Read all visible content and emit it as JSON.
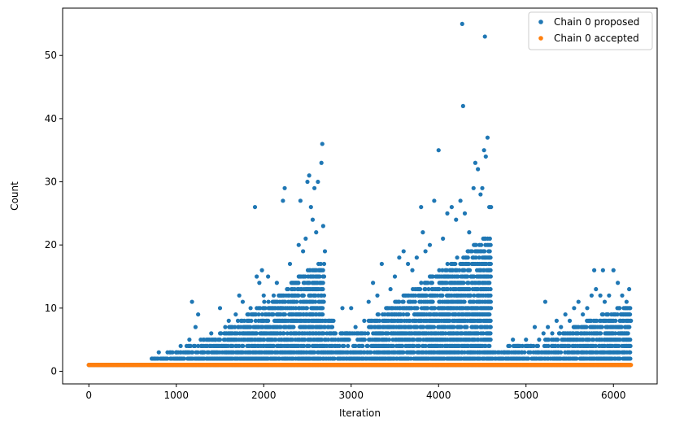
{
  "chart_data": {
    "type": "scatter",
    "title": "",
    "xlabel": "Iteration",
    "ylabel": "Count",
    "xlim": [
      -300,
      6500
    ],
    "ylim": [
      -2,
      57.5
    ],
    "xticks": [
      0,
      1000,
      2000,
      3000,
      4000,
      5000,
      6000
    ],
    "yticks": [
      0,
      10,
      20,
      30,
      40,
      50
    ],
    "grid": false,
    "legend_position": "top-right",
    "series": [
      {
        "name": "Chain 0 proposed",
        "color": "#1f77b4",
        "points": [
          [
            0,
            1
          ],
          [
            200,
            1
          ],
          [
            400,
            1
          ],
          [
            600,
            1
          ],
          [
            720,
            2
          ],
          [
            760,
            2
          ],
          [
            800,
            3
          ],
          [
            850,
            2
          ],
          [
            900,
            3
          ],
          [
            950,
            2
          ],
          [
            1000,
            3
          ],
          [
            1050,
            4
          ],
          [
            1100,
            3
          ],
          [
            1150,
            5
          ],
          [
            1180,
            11
          ],
          [
            1200,
            4
          ],
          [
            1220,
            7
          ],
          [
            1250,
            9
          ],
          [
            1280,
            5
          ],
          [
            1300,
            3
          ],
          [
            1350,
            4
          ],
          [
            1400,
            6
          ],
          [
            1450,
            5
          ],
          [
            1500,
            10
          ],
          [
            1520,
            4
          ],
          [
            1560,
            7
          ],
          [
            1600,
            8
          ],
          [
            1640,
            6
          ],
          [
            1680,
            9
          ],
          [
            1720,
            12
          ],
          [
            1760,
            11
          ],
          [
            1800,
            7
          ],
          [
            1850,
            10
          ],
          [
            1900,
            26
          ],
          [
            1920,
            15
          ],
          [
            1950,
            14
          ],
          [
            1980,
            16
          ],
          [
            2000,
            12
          ],
          [
            2050,
            15
          ],
          [
            2100,
            9
          ],
          [
            2150,
            14
          ],
          [
            2200,
            12
          ],
          [
            2220,
            27
          ],
          [
            2240,
            29
          ],
          [
            2300,
            17
          ],
          [
            2350,
            11
          ],
          [
            2400,
            20
          ],
          [
            2420,
            27
          ],
          [
            2450,
            19
          ],
          [
            2480,
            21
          ],
          [
            2500,
            30
          ],
          [
            2520,
            31
          ],
          [
            2540,
            26
          ],
          [
            2560,
            24
          ],
          [
            2580,
            29
          ],
          [
            2600,
            22
          ],
          [
            2620,
            30
          ],
          [
            2640,
            16
          ],
          [
            2660,
            33
          ],
          [
            2670,
            36
          ],
          [
            2680,
            23
          ],
          [
            2700,
            19
          ],
          [
            2750,
            8
          ],
          [
            2800,
            6
          ],
          [
            2850,
            5
          ],
          [
            2900,
            10
          ],
          [
            2950,
            6
          ],
          [
            3000,
            10
          ],
          [
            3050,
            7
          ],
          [
            3100,
            5
          ],
          [
            3150,
            8
          ],
          [
            3200,
            11
          ],
          [
            3250,
            14
          ],
          [
            3300,
            12
          ],
          [
            3350,
            17
          ],
          [
            3400,
            10
          ],
          [
            3450,
            13
          ],
          [
            3500,
            15
          ],
          [
            3550,
            18
          ],
          [
            3600,
            19
          ],
          [
            3650,
            17
          ],
          [
            3700,
            16
          ],
          [
            3750,
            18
          ],
          [
            3800,
            26
          ],
          [
            3820,
            22
          ],
          [
            3850,
            19
          ],
          [
            3900,
            20
          ],
          [
            3950,
            27
          ],
          [
            4000,
            35
          ],
          [
            4050,
            21
          ],
          [
            4100,
            25
          ],
          [
            4150,
            26
          ],
          [
            4200,
            24
          ],
          [
            4250,
            27
          ],
          [
            4270,
            55
          ],
          [
            4280,
            42
          ],
          [
            4300,
            25
          ],
          [
            4350,
            22
          ],
          [
            4400,
            29
          ],
          [
            4420,
            33
          ],
          [
            4450,
            32
          ],
          [
            4480,
            28
          ],
          [
            4500,
            29
          ],
          [
            4520,
            35
          ],
          [
            4530,
            53
          ],
          [
            4540,
            34
          ],
          [
            4560,
            37
          ],
          [
            4580,
            26
          ],
          [
            4600,
            26
          ],
          [
            4650,
            3
          ],
          [
            4700,
            2
          ],
          [
            4750,
            3
          ],
          [
            4800,
            2
          ],
          [
            4850,
            5
          ],
          [
            4900,
            4
          ],
          [
            4950,
            3
          ],
          [
            5000,
            5
          ],
          [
            5050,
            4
          ],
          [
            5100,
            7
          ],
          [
            5150,
            5
          ],
          [
            5200,
            6
          ],
          [
            5220,
            11
          ],
          [
            5250,
            7
          ],
          [
            5300,
            6
          ],
          [
            5350,
            8
          ],
          [
            5400,
            7
          ],
          [
            5450,
            9
          ],
          [
            5500,
            8
          ],
          [
            5550,
            10
          ],
          [
            5600,
            11
          ],
          [
            5650,
            9
          ],
          [
            5700,
            10
          ],
          [
            5750,
            12
          ],
          [
            5780,
            16
          ],
          [
            5800,
            13
          ],
          [
            5850,
            12
          ],
          [
            5880,
            16
          ],
          [
            5900,
            11
          ],
          [
            5950,
            12
          ],
          [
            6000,
            16
          ],
          [
            6050,
            14
          ],
          [
            6100,
            12
          ],
          [
            6150,
            11
          ],
          [
            6180,
            13
          ],
          [
            6200,
            8
          ]
        ]
      },
      {
        "name": "Chain 0 accepted",
        "color": "#ff7f0e",
        "points": [
          [
            0,
            1
          ],
          [
            6200,
            1
          ]
        ]
      }
    ]
  }
}
